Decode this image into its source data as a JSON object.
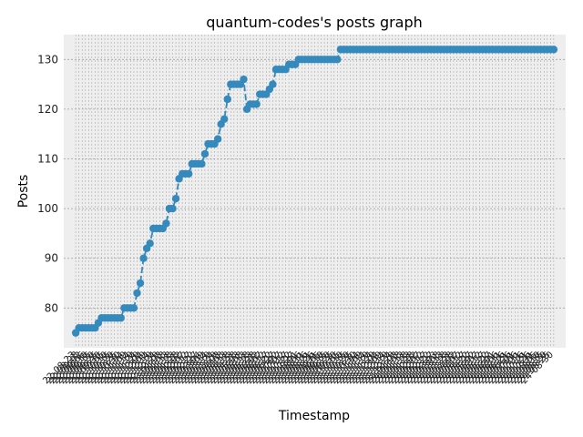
{
  "chart_data": {
    "type": "line",
    "title": "quantum-codes's posts graph",
    "xlabel": "Timestamp",
    "ylabel": "Posts",
    "ylim": [
      72,
      135
    ],
    "yticks": [
      80,
      90,
      100,
      110,
      120,
      130
    ],
    "grid": true,
    "color": "#348abd",
    "x_tick_labels": [
      "22-08-23",
      "22-08-28",
      "22-09-02",
      "22-09-06",
      "22-09-10",
      "22-09-15",
      "22-09-20",
      "22-09-25",
      "22-09-30",
      "22-10-05",
      "22-10-10",
      "22-10-15",
      "22-10-20",
      "22-10-25",
      "22-10-30",
      "22-11-04",
      "22-11-09",
      "22-11-14",
      "22-11-19",
      "22-11-24",
      "22-11-29",
      "22-12-04",
      "22-12-09",
      "22-12-14",
      "22-12-19",
      "22-12-24",
      "22-12-29",
      "23-01-03",
      "23-01-08",
      "23-01-13",
      "23-01-18",
      "23-01-23",
      "23-01-28",
      "23-02-02",
      "23-02-07",
      "23-02-12",
      "23-02-17",
      "23-02-22",
      "23-02-27",
      "23-03-04",
      "23-03-09",
      "23-03-14",
      "23-03-19",
      "23-03-24",
      "23-03-29",
      "23-04-03",
      "23-04-08",
      "23-04-13",
      "23-04-18",
      "23-04-23",
      "23-04-28",
      "23-05-03",
      "23-05-08",
      "23-05-13",
      "23-05-18",
      "23-05-23",
      "23-05-28",
      "23-06-02",
      "23-06-07",
      "23-06-12",
      "23-06-17",
      "23-06-22",
      "23-06-27",
      "23-07-02",
      "23-07-07",
      "23-07-12",
      "23-07-17",
      "23-07-22",
      "23-07-27",
      "23-08-01",
      "23-08-06",
      "23-08-11",
      "23-08-16",
      "23-08-21",
      "23-08-26",
      "23-08-31",
      "23-09-05",
      "23-09-10",
      "23-09-15",
      "23-09-20",
      "23-09-25",
      "23-09-30",
      "23-10-05",
      "23-10-10",
      "23-10-15",
      "23-10-20",
      "23-10-25",
      "23-10-30",
      "23-11-04",
      "23-11-09",
      "23-11-14",
      "23-11-19",
      "23-11-24",
      "23-11-29",
      "23-12-04",
      "23-12-09",
      "23-12-14",
      "23-12-19",
      "23-12-24",
      "23-12-29",
      "24-01-03",
      "24-01-08",
      "24-01-13",
      "24-01-18",
      "24-01-23",
      "24-01-28",
      "24-02-02",
      "24-02-07",
      "24-02-12",
      "24-02-17",
      "24-02-22",
      "24-02-27",
      "24-03-03",
      "24-03-08",
      "24-03-13",
      "24-03-18",
      "24-03-23",
      "24-03-28",
      "24-04-02",
      "24-04-07",
      "24-04-12",
      "24-04-17",
      "24-04-22",
      "24-04-27",
      "24-05-02",
      "24-05-07",
      "24-05-12",
      "24-05-17",
      "24-05-22",
      "24-05-27",
      "24-06-01",
      "24-06-06",
      "24-06-11",
      "24-06-16",
      "24-06-21",
      "24-06-26",
      "24-07-01",
      "24-07-06",
      "24-07-11",
      "24-07-16",
      "24-07-21",
      "24-07-26",
      "24-07-31",
      "24-08-05",
      "24-08-10",
      "24-08-15",
      "24-08-20",
      "24-08-25",
      "24-08-30"
    ],
    "x_index": [
      0,
      1,
      2,
      3,
      4,
      5,
      6,
      7,
      8,
      9,
      10,
      11,
      12,
      13,
      14,
      15,
      16,
      17,
      18,
      19,
      20,
      21,
      22,
      23,
      24,
      25,
      26,
      27,
      28,
      29,
      30,
      31,
      32,
      33,
      34,
      35,
      36,
      37,
      38,
      39,
      40,
      41,
      42,
      43,
      44,
      45,
      46,
      47,
      48,
      49,
      50,
      51,
      52,
      53,
      54,
      55,
      56,
      57,
      58,
      59,
      60,
      61,
      62,
      63,
      64,
      65,
      66,
      67,
      68,
      69,
      70,
      71,
      72,
      73,
      74,
      75,
      76,
      77,
      78,
      79,
      80,
      81,
      82,
      83,
      84,
      85,
      86,
      87,
      88,
      89,
      90,
      91,
      92,
      93,
      94,
      95,
      96,
      97,
      98,
      99,
      100,
      101,
      102,
      103,
      104,
      105,
      106,
      107,
      108,
      109,
      110,
      111,
      112,
      113,
      114,
      115,
      116,
      117,
      118,
      119,
      120,
      121,
      122,
      123,
      124,
      125,
      126,
      127,
      128,
      129,
      130,
      131,
      132,
      133,
      134,
      135,
      136,
      137,
      138,
      139,
      140,
      141,
      142,
      143,
      144,
      145,
      146,
      147,
      148
    ],
    "values": [
      75,
      76,
      76,
      76,
      76,
      76,
      76,
      77,
      78,
      78,
      78,
      78,
      78,
      78,
      78,
      80,
      80,
      80,
      80,
      83,
      85,
      90,
      92,
      93,
      96,
      96,
      96,
      96,
      97,
      100,
      100,
      102,
      106,
      107,
      107,
      107,
      109,
      109,
      109,
      109,
      111,
      113,
      113,
      113,
      114,
      117,
      118,
      122,
      125,
      125,
      125,
      125,
      126,
      120,
      121,
      121,
      121,
      123,
      123,
      123,
      124,
      125,
      128,
      128,
      128,
      128,
      129,
      129,
      129,
      130,
      130,
      130,
      130,
      130,
      130,
      130,
      130,
      130,
      130,
      130,
      130,
      130,
      132,
      132,
      132,
      132,
      132,
      132,
      132,
      132,
      132,
      132,
      132,
      132,
      132,
      132,
      132,
      132,
      132,
      132,
      132,
      132,
      132,
      132,
      132,
      132,
      132,
      132,
      132,
      132,
      132,
      132,
      132,
      132,
      132,
      132,
      132,
      132,
      132,
      132,
      132,
      132,
      132,
      132,
      132,
      132,
      132,
      132,
      132,
      132,
      132,
      132,
      132,
      132,
      132,
      132,
      132,
      132,
      132,
      132,
      132,
      132,
      132,
      132,
      132,
      132,
      132,
      132,
      132
    ]
  }
}
